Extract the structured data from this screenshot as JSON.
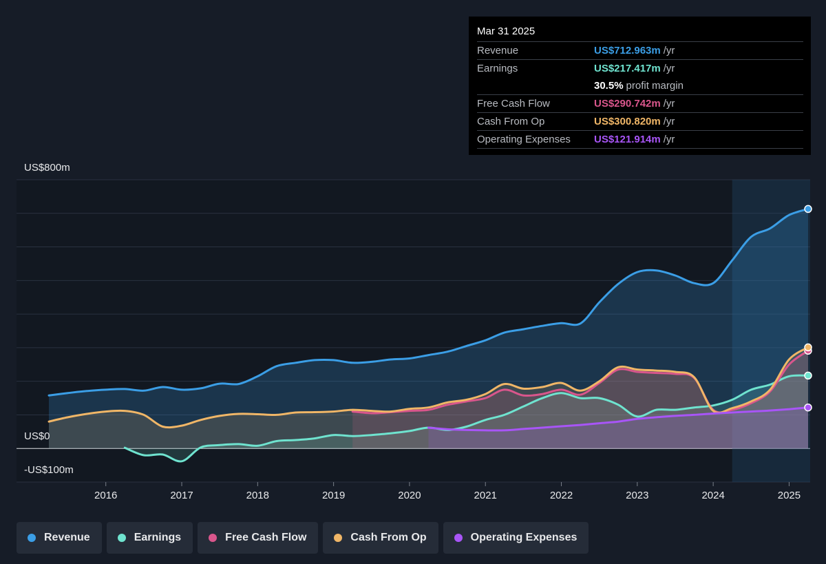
{
  "tooltip": {
    "date": "Mar 31 2025",
    "rows": [
      {
        "label": "Revenue",
        "value": "US$712.963m",
        "unit": "/yr",
        "color": "#3b9ee6"
      },
      {
        "label": "Earnings",
        "value": "US$217.417m",
        "unit": "/yr",
        "color": "#6fe3cf"
      },
      {
        "label": "",
        "value": "30.5%",
        "unit": "profit margin",
        "color": "#ffffff"
      },
      {
        "label": "Free Cash Flow",
        "value": "US$290.742m",
        "unit": "/yr",
        "color": "#d9568c"
      },
      {
        "label": "Cash From Op",
        "value": "US$300.820m",
        "unit": "/yr",
        "color": "#f0b667"
      },
      {
        "label": "Operating Expenses",
        "value": "US$121.914m",
        "unit": "/yr",
        "color": "#a855f7"
      }
    ]
  },
  "legend": [
    {
      "label": "Revenue",
      "color": "#3b9ee6"
    },
    {
      "label": "Earnings",
      "color": "#6fe3cf"
    },
    {
      "label": "Free Cash Flow",
      "color": "#d9568c"
    },
    {
      "label": "Cash From Op",
      "color": "#f0b667"
    },
    {
      "label": "Operating Expenses",
      "color": "#a855f7"
    }
  ],
  "chart_data": {
    "type": "line",
    "y_tick_labels": [
      "US$800m",
      "US$0",
      "-US$100m"
    ],
    "ylim": [
      -100,
      800
    ],
    "x_ticks": [
      2016,
      2017,
      2018,
      2019,
      2020,
      2021,
      2022,
      2023,
      2024,
      2025
    ],
    "xlim": [
      2015.25,
      2025.25
    ],
    "highlight_start": 2024.25,
    "grid": true,
    "legend_position": "bottom",
    "series": [
      {
        "name": "Revenue",
        "color": "#3b9ee6",
        "points": [
          [
            2015.25,
            158
          ],
          [
            2015.5,
            165
          ],
          [
            2015.75,
            171
          ],
          [
            2016,
            175
          ],
          [
            2016.25,
            177
          ],
          [
            2016.5,
            172
          ],
          [
            2016.75,
            183
          ],
          [
            2017,
            175
          ],
          [
            2017.25,
            179
          ],
          [
            2017.5,
            193
          ],
          [
            2017.75,
            192
          ],
          [
            2018,
            215
          ],
          [
            2018.25,
            245
          ],
          [
            2018.5,
            255
          ],
          [
            2018.75,
            263
          ],
          [
            2019,
            263
          ],
          [
            2019.25,
            255
          ],
          [
            2019.5,
            258
          ],
          [
            2019.75,
            265
          ],
          [
            2020,
            268
          ],
          [
            2020.25,
            278
          ],
          [
            2020.5,
            288
          ],
          [
            2020.75,
            305
          ],
          [
            2021,
            322
          ],
          [
            2021.25,
            345
          ],
          [
            2021.5,
            355
          ],
          [
            2021.75,
            365
          ],
          [
            2022,
            373
          ],
          [
            2022.25,
            372
          ],
          [
            2022.5,
            435
          ],
          [
            2022.75,
            490
          ],
          [
            2023,
            525
          ],
          [
            2023.25,
            530
          ],
          [
            2023.5,
            515
          ],
          [
            2023.75,
            492
          ],
          [
            2024,
            492
          ],
          [
            2024.25,
            560
          ],
          [
            2024.5,
            630
          ],
          [
            2024.75,
            655
          ],
          [
            2025,
            695
          ],
          [
            2025.25,
            713
          ]
        ]
      },
      {
        "name": "Earnings",
        "color": "#6fe3cf",
        "points": [
          [
            2016.25,
            2
          ],
          [
            2016.5,
            -20
          ],
          [
            2016.75,
            -18
          ],
          [
            2017,
            -38
          ],
          [
            2017.25,
            3
          ],
          [
            2017.5,
            10
          ],
          [
            2017.75,
            13
          ],
          [
            2018,
            8
          ],
          [
            2018.25,
            22
          ],
          [
            2018.5,
            25
          ],
          [
            2018.75,
            30
          ],
          [
            2019,
            40
          ],
          [
            2019.25,
            37
          ],
          [
            2019.5,
            40
          ],
          [
            2019.75,
            45
          ],
          [
            2020,
            52
          ],
          [
            2020.25,
            62
          ],
          [
            2020.5,
            55
          ],
          [
            2020.75,
            65
          ],
          [
            2021,
            85
          ],
          [
            2021.25,
            100
          ],
          [
            2021.5,
            125
          ],
          [
            2021.75,
            150
          ],
          [
            2022,
            165
          ],
          [
            2022.25,
            150
          ],
          [
            2022.5,
            150
          ],
          [
            2022.75,
            130
          ],
          [
            2023,
            95
          ],
          [
            2023.25,
            115
          ],
          [
            2023.5,
            115
          ],
          [
            2023.75,
            122
          ],
          [
            2024,
            128
          ],
          [
            2024.25,
            145
          ],
          [
            2024.5,
            175
          ],
          [
            2024.75,
            190
          ],
          [
            2025,
            215
          ],
          [
            2025.25,
            217
          ]
        ]
      },
      {
        "name": "Free Cash Flow",
        "color": "#d9568c",
        "points": [
          [
            2019.25,
            110
          ],
          [
            2019.5,
            105
          ],
          [
            2019.75,
            108
          ],
          [
            2020,
            112
          ],
          [
            2020.25,
            115
          ],
          [
            2020.5,
            130
          ],
          [
            2020.75,
            140
          ],
          [
            2021,
            150
          ],
          [
            2021.25,
            175
          ],
          [
            2021.5,
            158
          ],
          [
            2021.75,
            162
          ],
          [
            2022,
            175
          ],
          [
            2022.25,
            160
          ],
          [
            2022.5,
            195
          ],
          [
            2022.75,
            235
          ],
          [
            2023,
            228
          ],
          [
            2023.25,
            225
          ],
          [
            2023.5,
            222
          ],
          [
            2023.75,
            210
          ],
          [
            2024,
            115
          ],
          [
            2024.25,
            115
          ],
          [
            2024.5,
            135
          ],
          [
            2024.75,
            170
          ],
          [
            2025,
            250
          ],
          [
            2025.25,
            291
          ]
        ]
      },
      {
        "name": "Cash From Op",
        "color": "#f0b667",
        "points": [
          [
            2015.25,
            80
          ],
          [
            2015.5,
            93
          ],
          [
            2015.75,
            103
          ],
          [
            2016,
            110
          ],
          [
            2016.25,
            112
          ],
          [
            2016.5,
            100
          ],
          [
            2016.75,
            65
          ],
          [
            2017,
            68
          ],
          [
            2017.25,
            85
          ],
          [
            2017.5,
            97
          ],
          [
            2017.75,
            103
          ],
          [
            2018,
            102
          ],
          [
            2018.25,
            100
          ],
          [
            2018.5,
            107
          ],
          [
            2018.75,
            108
          ],
          [
            2019,
            110
          ],
          [
            2019.25,
            115
          ],
          [
            2019.5,
            112
          ],
          [
            2019.75,
            110
          ],
          [
            2020,
            118
          ],
          [
            2020.25,
            122
          ],
          [
            2020.5,
            137
          ],
          [
            2020.75,
            145
          ],
          [
            2021,
            162
          ],
          [
            2021.25,
            192
          ],
          [
            2021.5,
            178
          ],
          [
            2021.75,
            183
          ],
          [
            2022,
            195
          ],
          [
            2022.25,
            172
          ],
          [
            2022.5,
            200
          ],
          [
            2022.75,
            242
          ],
          [
            2023,
            235
          ],
          [
            2023.25,
            232
          ],
          [
            2023.5,
            228
          ],
          [
            2023.75,
            212
          ],
          [
            2024,
            112
          ],
          [
            2024.25,
            120
          ],
          [
            2024.5,
            140
          ],
          [
            2024.75,
            175
          ],
          [
            2025,
            265
          ],
          [
            2025.25,
            301
          ]
        ]
      },
      {
        "name": "Operating Expenses",
        "color": "#a855f7",
        "points": [
          [
            2020.25,
            62
          ],
          [
            2020.5,
            57
          ],
          [
            2020.75,
            55
          ],
          [
            2021,
            54
          ],
          [
            2021.25,
            54
          ],
          [
            2021.5,
            58
          ],
          [
            2021.75,
            62
          ],
          [
            2022,
            66
          ],
          [
            2022.25,
            70
          ],
          [
            2022.5,
            75
          ],
          [
            2022.75,
            80
          ],
          [
            2023,
            88
          ],
          [
            2023.25,
            93
          ],
          [
            2023.5,
            97
          ],
          [
            2023.75,
            100
          ],
          [
            2024,
            104
          ],
          [
            2024.25,
            107
          ],
          [
            2024.5,
            110
          ],
          [
            2024.75,
            113
          ],
          [
            2025,
            117
          ],
          [
            2025.25,
            122
          ]
        ]
      }
    ]
  }
}
